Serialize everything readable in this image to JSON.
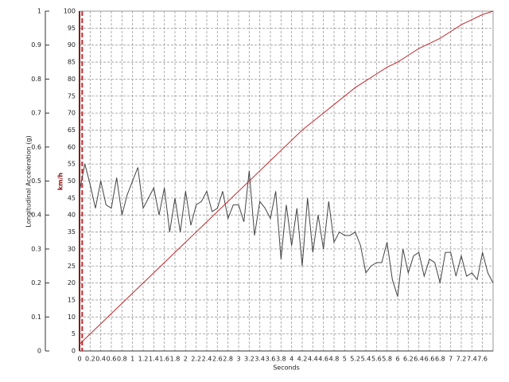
{
  "chart_data": {
    "type": "line",
    "xlabel": "Seconds",
    "ylabel": "Longitudinal Acceleration (g)",
    "y2label": "km/h",
    "xlim": [
      0,
      7.8
    ],
    "xticks": [
      0,
      0.2,
      0.4,
      0.6,
      0.8,
      1,
      1.2,
      1.4,
      1.6,
      1.8,
      2,
      2.2,
      2.4,
      2.6,
      2.8,
      3,
      3.2,
      3.4,
      3.6,
      3.8,
      4,
      4.2,
      4.4,
      4.6,
      4.8,
      5,
      5.2,
      5.4,
      5.6,
      5.8,
      6,
      6.2,
      6.4,
      6.6,
      6.8,
      7,
      7.2,
      7.4,
      7.6
    ],
    "ylim": [
      0,
      1
    ],
    "yticks": [
      0,
      0.1,
      0.2,
      0.3,
      0.4,
      0.5,
      0.6,
      0.7,
      0.8,
      0.9,
      1
    ],
    "y2lim": [
      0,
      100
    ],
    "y2ticks": [
      0,
      5,
      10,
      15,
      20,
      25,
      30,
      35,
      40,
      45,
      50,
      55,
      60,
      65,
      70,
      75,
      80,
      85,
      90,
      95,
      100
    ],
    "grid": true,
    "marker_x": 0.05,
    "marker_color": "#c0282d",
    "series": [
      {
        "color": "#444444",
        "x": [
          0,
          0.1,
          0.2,
          0.3,
          0.4,
          0.5,
          0.6,
          0.7,
          0.8,
          0.9,
          1,
          1.1,
          1.2,
          1.3,
          1.4,
          1.5,
          1.6,
          1.7,
          1.8,
          1.9,
          2,
          2.1,
          2.2,
          2.3,
          2.4,
          2.5,
          2.6,
          2.7,
          2.8,
          2.9,
          3,
          3.1,
          3.2,
          3.3,
          3.4,
          3.5,
          3.6,
          3.7,
          3.8,
          3.9,
          4,
          4.1,
          4.2,
          4.3,
          4.4,
          4.5,
          4.6,
          4.7,
          4.8,
          4.9,
          5,
          5.1,
          5.2,
          5.3,
          5.4,
          5.5,
          5.6,
          5.7,
          5.8,
          5.9,
          6,
          6.1,
          6.2,
          6.3,
          6.4,
          6.5,
          6.6,
          6.7,
          6.8,
          6.9,
          7,
          7.1,
          7.2,
          7.3,
          7.4,
          7.5,
          7.6,
          7.7,
          7.8
        ],
        "values": [
          0.47,
          0.55,
          0.49,
          0.42,
          0.5,
          0.43,
          0.42,
          0.51,
          0.4,
          0.46,
          0.5,
          0.54,
          0.42,
          0.45,
          0.48,
          0.4,
          0.48,
          0.35,
          0.45,
          0.35,
          0.47,
          0.37,
          0.43,
          0.44,
          0.47,
          0.41,
          0.42,
          0.47,
          0.39,
          0.43,
          0.43,
          0.38,
          0.53,
          0.34,
          0.44,
          0.42,
          0.39,
          0.47,
          0.27,
          0.43,
          0.31,
          0.42,
          0.25,
          0.45,
          0.29,
          0.4,
          0.3,
          0.44,
          0.32,
          0.35,
          0.34,
          0.34,
          0.35,
          0.31,
          0.23,
          0.25,
          0.26,
          0.26,
          0.32,
          0.21,
          0.16,
          0.3,
          0.23,
          0.28,
          0.29,
          0.22,
          0.27,
          0.26,
          0.2,
          0.29,
          0.29,
          0.22,
          0.28,
          0.22,
          0.23,
          0.21,
          0.29,
          0.23,
          0.2
        ]
      },
      {
        "color": "#c0282d",
        "axis": "y2",
        "x": [
          0,
          0.2,
          0.4,
          0.6,
          0.8,
          1,
          1.2,
          1.4,
          1.6,
          1.8,
          2,
          2.2,
          2.4,
          2.6,
          2.8,
          3,
          3.2,
          3.4,
          3.6,
          3.8,
          4,
          4.2,
          4.4,
          4.6,
          4.8,
          5,
          5.2,
          5.4,
          5.6,
          5.8,
          6,
          6.2,
          6.4,
          6.6,
          6.8,
          7,
          7.2,
          7.4,
          7.6,
          7.8
        ],
        "values": [
          2,
          5,
          8,
          11,
          14,
          17,
          20,
          23,
          26,
          29,
          32,
          35,
          38,
          41,
          44,
          47,
          50,
          53,
          56,
          59,
          62,
          65,
          67.5,
          70,
          72.5,
          75,
          77.5,
          79.5,
          81.5,
          83.5,
          85,
          87,
          89,
          90.5,
          92,
          94,
          96,
          97.5,
          99,
          100
        ]
      }
    ]
  }
}
